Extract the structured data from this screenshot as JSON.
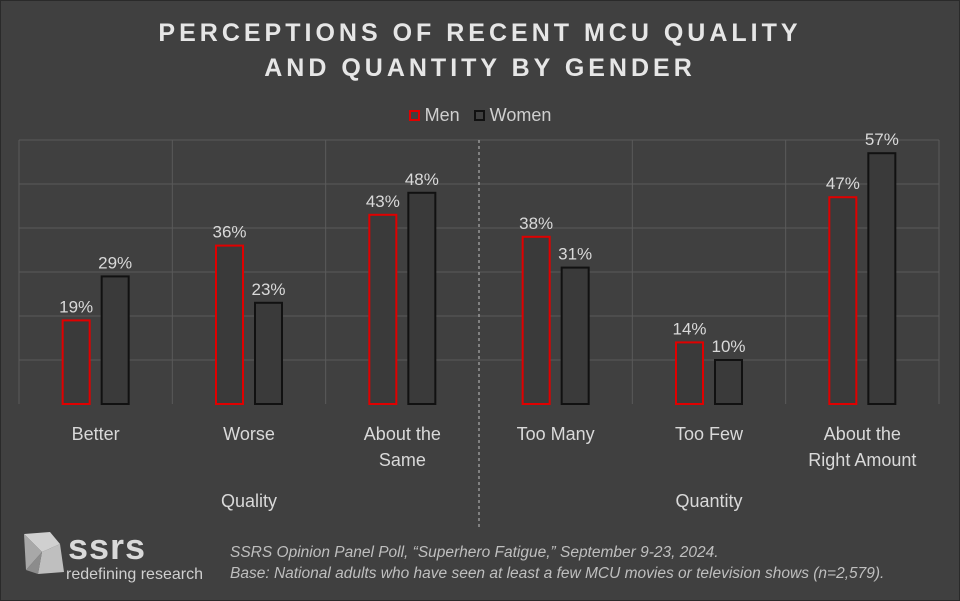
{
  "title_line1": "PERCEPTIONS OF RECENT MCU QUALITY",
  "title_line2": "AND QUANTITY BY GENDER",
  "legend": {
    "men": "Men",
    "women": "Women"
  },
  "colors": {
    "men": "#e00000",
    "women": "#111111",
    "bar_fill": "#3a3a3a",
    "grid": "#5a5a5a",
    "background": "#404040"
  },
  "chart_data": {
    "type": "bar",
    "categories": [
      "Better",
      "Worse",
      "About the Same",
      "Too Many",
      "Too Few",
      "About the Right Amount"
    ],
    "category_lines": [
      [
        "Better"
      ],
      [
        "Worse"
      ],
      [
        "About the",
        "Same"
      ],
      [
        "Too Many"
      ],
      [
        "Too Few"
      ],
      [
        "About the",
        "Right Amount"
      ]
    ],
    "series": [
      {
        "name": "Men",
        "values": [
          19,
          36,
          43,
          38,
          14,
          47
        ],
        "labels": [
          "19%",
          "36%",
          "43%",
          "38%",
          "14%",
          "47%"
        ]
      },
      {
        "name": "Women",
        "values": [
          29,
          23,
          48,
          31,
          10,
          57
        ],
        "labels": [
          "29%",
          "23%",
          "48%",
          "31%",
          "10%",
          "57%"
        ]
      }
    ],
    "groups": [
      {
        "name": "Quality",
        "categories": [
          "Better",
          "Worse",
          "About the Same"
        ]
      },
      {
        "name": "Quantity",
        "categories": [
          "Too Many",
          "Too Few",
          "About the Right Amount"
        ]
      }
    ],
    "ylim": [
      0,
      60
    ],
    "grid": true,
    "legend_position": "top-center"
  },
  "logo": {
    "name": "ssrs",
    "tagline": "redefining research"
  },
  "source_line1": "SSRS Opinion Panel Poll, “Superhero Fatigue,” September 9-23, 2024.",
  "source_line2": "Base: National adults who have seen at least a few MCU movies or television shows (n=2,579)."
}
